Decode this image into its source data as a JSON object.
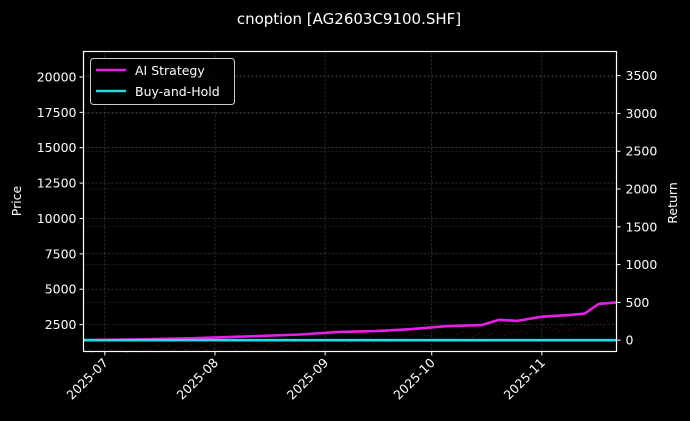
{
  "chart_data": {
    "type": "line",
    "title": "cnoption [AG2603C9100.SHF]",
    "xlabel": "",
    "ylabel": "Price",
    "ylabel_right": "Return",
    "grid": true,
    "legend_position": "upper left",
    "x_ticks": [
      "2025-07",
      "2025-08",
      "2025-09",
      "2025-10",
      "2025-11"
    ],
    "y_ticks_left": [
      2500,
      5000,
      7500,
      10000,
      12500,
      15000,
      17500,
      20000
    ],
    "y_ticks_right": [
      0,
      500,
      1000,
      1500,
      2000,
      2500,
      3000,
      3500
    ],
    "ylim_left": [
      600,
      21800
    ],
    "ylim_right": [
      -150,
      3820
    ],
    "xlim": [
      "2025-06-25",
      "2025-11-22"
    ],
    "x": [
      "2025-06-25",
      "2025-07-10",
      "2025-07-25",
      "2025-08-10",
      "2025-08-25",
      "2025-09-05",
      "2025-09-15",
      "2025-09-25",
      "2025-10-05",
      "2025-10-15",
      "2025-10-20",
      "2025-10-25",
      "2025-11-01",
      "2025-11-08",
      "2025-11-13",
      "2025-11-17",
      "2025-11-22"
    ],
    "series": [
      {
        "name": "AI Strategy",
        "color": "#e81ee8",
        "axis": "right",
        "values": [
          0,
          10,
          25,
          50,
          75,
          110,
          120,
          145,
          185,
          200,
          270,
          255,
          310,
          330,
          350,
          480,
          500
        ]
      },
      {
        "name": "Buy-and-Hold",
        "color": "#22dde8",
        "axis": "right",
        "values": [
          0,
          0,
          0,
          0,
          0,
          0,
          0,
          0,
          0,
          0,
          0,
          0,
          0,
          0,
          0,
          0,
          0
        ]
      }
    ],
    "price_scatter": {
      "name": "Price",
      "color": "#7a1010",
      "axis": "left",
      "note": "faint dark-red dotted price trace near bottom, ~700 to ~2800"
    }
  },
  "legend": {
    "items": [
      {
        "label": "AI Strategy",
        "color": "#e81ee8"
      },
      {
        "label": "Buy-and-Hold",
        "color": "#22dde8"
      }
    ]
  }
}
